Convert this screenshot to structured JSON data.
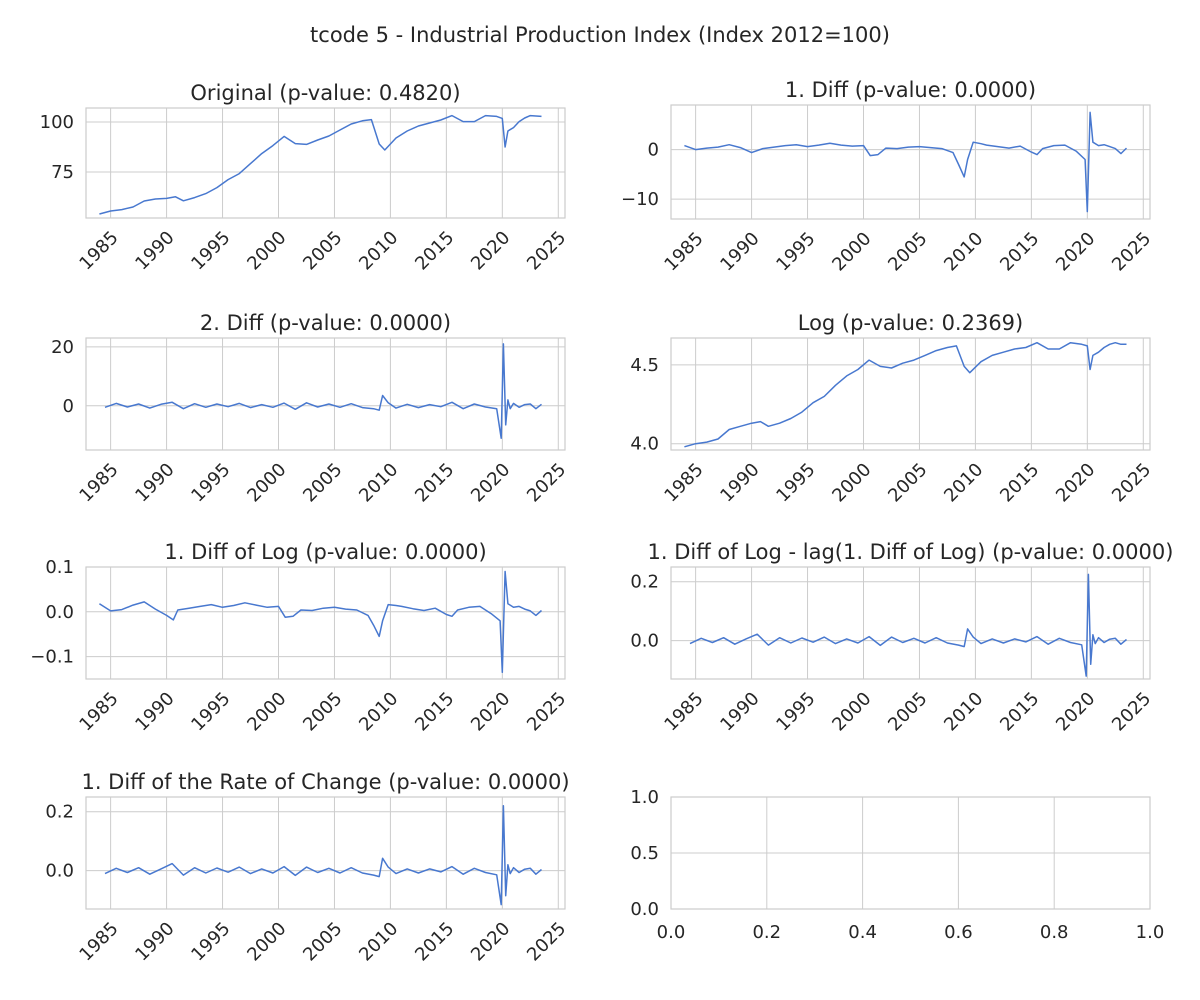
{
  "figure": {
    "title": "tcode 5 - Industrial Production Index (Index 2012=100)",
    "line_color": "#4878cf",
    "grid_color": "#cccccc"
  },
  "chart_data": [
    {
      "type": "line",
      "title": "Original (p-value: 0.4820)",
      "xlabel": "",
      "ylabel": "",
      "xlim": [
        1982.8,
        2025.6
      ],
      "ylim": [
        52,
        107
      ],
      "xticks": [
        1985,
        1990,
        1995,
        2000,
        2005,
        2010,
        2015,
        2020,
        2025
      ],
      "xtick_labels": [
        "1985",
        "1990",
        "1995",
        "2000",
        "2005",
        "2010",
        "2015",
        "2020",
        "2025"
      ],
      "yticks": [
        75,
        100
      ],
      "ytick_labels": [
        "75",
        "100"
      ],
      "grid": true,
      "series": [
        {
          "x": [
            1984.0,
            1985.0,
            1986.0,
            1987.0,
            1988.0,
            1989.0,
            1990.0,
            1990.8,
            1991.5,
            1992.5,
            1993.5,
            1994.5,
            1995.5,
            1996.5,
            1997.5,
            1998.5,
            1999.5,
            2000.5,
            2001.5,
            2002.5,
            2003.5,
            2004.5,
            2005.5,
            2006.5,
            2007.5,
            2008.3,
            2009.0,
            2009.5,
            2010.5,
            2011.5,
            2012.5,
            2013.5,
            2014.5,
            2015.5,
            2016.5,
            2017.5,
            2018.5,
            2019.5,
            2020.0,
            2020.25,
            2020.5,
            2021.0,
            2021.5,
            2022.0,
            2022.5,
            2023.0,
            2023.5
          ],
          "values": [
            54,
            55.5,
            56.2,
            57.5,
            60.5,
            61.5,
            61.8,
            62.6,
            60.6,
            62.2,
            64.2,
            67.2,
            71.2,
            74.2,
            79.2,
            84.2,
            88.2,
            92.8,
            89.2,
            88.8,
            91.0,
            93.0,
            96.0,
            99.0,
            100.6,
            101.2,
            89.0,
            86.0,
            92.0,
            95.5,
            98.0,
            99.5,
            101.0,
            103.2,
            100.2,
            100.2,
            103.2,
            102.8,
            101.8,
            87.5,
            95.5,
            97.2,
            100.2,
            102.0,
            103.2,
            103.0,
            102.8
          ]
        }
      ]
    },
    {
      "type": "line",
      "title": "1. Diff (p-value: 0.0000)",
      "xlabel": "",
      "ylabel": "",
      "xlim": [
        1982.8,
        2025.6
      ],
      "ylim": [
        -14,
        9
      ],
      "xticks": [
        1985,
        1990,
        1995,
        2000,
        2005,
        2010,
        2015,
        2020,
        2025
      ],
      "xtick_labels": [
        "1985",
        "1990",
        "1995",
        "2000",
        "2005",
        "2010",
        "2015",
        "2020",
        "2025"
      ],
      "yticks": [
        -10,
        0
      ],
      "ytick_labels": [
        "−10",
        "0"
      ],
      "grid": true,
      "series": [
        {
          "x": [
            1984.0,
            1985.0,
            1986.0,
            1987.0,
            1988.0,
            1989.0,
            1990.0,
            1991.0,
            1992.0,
            1993.0,
            1994.0,
            1995.0,
            1996.0,
            1997.0,
            1998.0,
            1999.0,
            2000.0,
            2000.6,
            2001.3,
            2002.0,
            2003.0,
            2004.0,
            2005.0,
            2006.0,
            2007.0,
            2008.0,
            2008.5,
            2009.0,
            2009.3,
            2009.8,
            2010.5,
            2011.0,
            2012.0,
            2013.0,
            2014.0,
            2015.0,
            2015.5,
            2016.0,
            2017.0,
            2018.0,
            2019.0,
            2019.8,
            2020.0,
            2020.25,
            2020.5,
            2021.0,
            2021.5,
            2022.0,
            2022.5,
            2023.0,
            2023.5
          ],
          "values": [
            0.8,
            0,
            0.3,
            0.5,
            1.0,
            0.4,
            -0.6,
            0.2,
            0.5,
            0.8,
            1.0,
            0.6,
            0.9,
            1.3,
            0.9,
            0.7,
            0.8,
            -1.2,
            -1.0,
            0.3,
            0.2,
            0.5,
            0.6,
            0.4,
            0.2,
            -0.6,
            -3.0,
            -5.5,
            -2.0,
            1.5,
            1.2,
            0.9,
            0.6,
            0.3,
            0.7,
            -0.5,
            -1.0,
            0.2,
            0.8,
            0.9,
            -0.3,
            -2.0,
            -12.5,
            7.5,
            1.5,
            0.8,
            1.0,
            0.6,
            0.2,
            -0.8,
            0.3
          ]
        }
      ]
    },
    {
      "type": "line",
      "title": "2. Diff (p-value: 0.0000)",
      "xlabel": "",
      "ylabel": "",
      "xlim": [
        1982.8,
        2025.6
      ],
      "ylim": [
        -15,
        23
      ],
      "xticks": [
        1985,
        1990,
        1995,
        2000,
        2005,
        2010,
        2015,
        2020,
        2025
      ],
      "xtick_labels": [
        "1985",
        "1990",
        "1995",
        "2000",
        "2005",
        "2010",
        "2015",
        "2020",
        "2025"
      ],
      "yticks": [
        0,
        20
      ],
      "ytick_labels": [
        "0",
        "20"
      ],
      "grid": true,
      "series": [
        {
          "x": [
            1984.5,
            1985.5,
            1986.5,
            1987.5,
            1988.5,
            1989.5,
            1990.5,
            1991.5,
            1992.5,
            1993.5,
            1994.5,
            1995.5,
            1996.5,
            1997.5,
            1998.5,
            1999.5,
            2000.5,
            2001.5,
            2002.5,
            2003.5,
            2004.5,
            2005.5,
            2006.5,
            2007.5,
            2008.5,
            2009.0,
            2009.3,
            2009.8,
            2010.5,
            2011.5,
            2012.5,
            2013.5,
            2014.5,
            2015.5,
            2016.5,
            2017.5,
            2018.5,
            2019.5,
            2019.9,
            2020.1,
            2020.3,
            2020.5,
            2020.7,
            2021.0,
            2021.5,
            2022.0,
            2022.5,
            2023.0,
            2023.5
          ],
          "values": [
            -0.5,
            0.8,
            -0.4,
            0.6,
            -0.8,
            0.5,
            1.2,
            -1.0,
            0.7,
            -0.5,
            0.6,
            -0.3,
            0.8,
            -0.6,
            0.4,
            -0.5,
            0.9,
            -1.2,
            1.0,
            -0.4,
            0.6,
            -0.5,
            0.7,
            -0.6,
            -1.0,
            -1.5,
            3.5,
            1.0,
            -0.8,
            0.5,
            -0.6,
            0.4,
            -0.3,
            1.2,
            -1.0,
            0.6,
            -0.4,
            -1.0,
            -11.0,
            21.0,
            -6.5,
            2.0,
            -1.0,
            0.8,
            -0.5,
            0.4,
            0.6,
            -1.0,
            0.5
          ]
        }
      ]
    },
    {
      "type": "line",
      "title": "Log (p-value: 0.2369)",
      "xlabel": "",
      "ylabel": "",
      "xlim": [
        1982.8,
        2025.6
      ],
      "ylim": [
        3.96,
        4.67
      ],
      "xticks": [
        1985,
        1990,
        1995,
        2000,
        2005,
        2010,
        2015,
        2020,
        2025
      ],
      "xtick_labels": [
        "1985",
        "1990",
        "1995",
        "2000",
        "2005",
        "2010",
        "2015",
        "2020",
        "2025"
      ],
      "yticks": [
        4.0,
        4.5
      ],
      "ytick_labels": [
        "4.0",
        "4.5"
      ],
      "grid": true,
      "series": [
        {
          "x": [
            1984.0,
            1985.0,
            1986.0,
            1987.0,
            1988.0,
            1989.0,
            1990.0,
            1990.8,
            1991.5,
            1992.5,
            1993.5,
            1994.5,
            1995.5,
            1996.5,
            1997.5,
            1998.5,
            1999.5,
            2000.5,
            2001.5,
            2002.5,
            2003.5,
            2004.5,
            2005.5,
            2006.5,
            2007.5,
            2008.3,
            2009.0,
            2009.5,
            2010.5,
            2011.5,
            2012.5,
            2013.5,
            2014.5,
            2015.5,
            2016.5,
            2017.5,
            2018.5,
            2019.5,
            2020.0,
            2020.25,
            2020.5,
            2021.0,
            2021.5,
            2022.0,
            2022.5,
            2023.0,
            2023.5
          ],
          "values": [
            3.98,
            4.0,
            4.01,
            4.03,
            4.09,
            4.11,
            4.13,
            4.14,
            4.11,
            4.13,
            4.16,
            4.2,
            4.26,
            4.3,
            4.37,
            4.43,
            4.47,
            4.53,
            4.49,
            4.48,
            4.51,
            4.53,
            4.56,
            4.59,
            4.61,
            4.62,
            4.49,
            4.45,
            4.52,
            4.56,
            4.58,
            4.6,
            4.61,
            4.64,
            4.6,
            4.6,
            4.64,
            4.63,
            4.62,
            4.47,
            4.56,
            4.58,
            4.61,
            4.63,
            4.64,
            4.63,
            4.63
          ]
        }
      ]
    },
    {
      "type": "line",
      "title": "1. Diff of Log (p-value: 0.0000)",
      "xlabel": "",
      "ylabel": "",
      "xlim": [
        1982.8,
        2025.6
      ],
      "ylim": [
        -0.15,
        0.1
      ],
      "xticks": [
        1985,
        1990,
        1995,
        2000,
        2005,
        2010,
        2015,
        2020,
        2025
      ],
      "xtick_labels": [
        "1985",
        "1990",
        "1995",
        "2000",
        "2005",
        "2010",
        "2015",
        "2020",
        "2025"
      ],
      "yticks": [
        -0.1,
        0.0,
        0.1
      ],
      "ytick_labels": [
        "−0.1",
        "0.0",
        "0.1"
      ],
      "grid": true,
      "series": [
        {
          "x": [
            1984.0,
            1985.0,
            1986.0,
            1987.0,
            1988.0,
            1989.0,
            1990.0,
            1990.6,
            1991.0,
            1992.0,
            1993.0,
            1994.0,
            1995.0,
            1996.0,
            1997.0,
            1998.0,
            1999.0,
            2000.0,
            2000.6,
            2001.3,
            2002.0,
            2003.0,
            2004.0,
            2005.0,
            2006.0,
            2007.0,
            2008.0,
            2008.5,
            2009.0,
            2009.3,
            2009.8,
            2010.5,
            2011.0,
            2012.0,
            2013.0,
            2014.0,
            2015.0,
            2015.5,
            2016.0,
            2017.0,
            2018.0,
            2019.0,
            2019.8,
            2020.0,
            2020.25,
            2020.5,
            2021.0,
            2021.5,
            2022.0,
            2022.5,
            2023.0,
            2023.5
          ],
          "values": [
            0.018,
            0.002,
            0.005,
            0.015,
            0.022,
            0.006,
            -0.008,
            -0.018,
            0.004,
            0.008,
            0.012,
            0.016,
            0.01,
            0.014,
            0.02,
            0.015,
            0.01,
            0.012,
            -0.012,
            -0.01,
            0.004,
            0.003,
            0.008,
            0.01,
            0.006,
            0.004,
            -0.008,
            -0.03,
            -0.055,
            -0.02,
            0.016,
            0.014,
            0.012,
            0.007,
            0.003,
            0.008,
            -0.006,
            -0.01,
            0.004,
            0.01,
            0.012,
            -0.004,
            -0.02,
            -0.135,
            0.09,
            0.018,
            0.01,
            0.012,
            0.006,
            0.002,
            -0.008,
            0.003
          ]
        }
      ]
    },
    {
      "type": "line",
      "title": "1. Diff of Log - lag(1. Diff of Log) (p-value: 0.0000)",
      "xlabel": "",
      "ylabel": "",
      "xlim": [
        1982.8,
        2025.6
      ],
      "ylim": [
        -0.13,
        0.25
      ],
      "xticks": [
        1985,
        1990,
        1995,
        2000,
        2005,
        2010,
        2015,
        2020,
        2025
      ],
      "xtick_labels": [
        "1985",
        "1990",
        "1995",
        "2000",
        "2005",
        "2010",
        "2015",
        "2020",
        "2025"
      ],
      "yticks": [
        0.0,
        0.2
      ],
      "ytick_labels": [
        "0.0",
        "0.2"
      ],
      "grid": true,
      "series": [
        {
          "x": [
            1984.5,
            1985.5,
            1986.5,
            1987.5,
            1988.5,
            1989.5,
            1990.5,
            1991.5,
            1992.5,
            1993.5,
            1994.5,
            1995.5,
            1996.5,
            1997.5,
            1998.5,
            1999.5,
            2000.5,
            2001.5,
            2002.5,
            2003.5,
            2004.5,
            2005.5,
            2006.5,
            2007.5,
            2008.5,
            2009.0,
            2009.3,
            2009.8,
            2010.5,
            2011.5,
            2012.5,
            2013.5,
            2014.5,
            2015.5,
            2016.5,
            2017.5,
            2018.5,
            2019.5,
            2019.9,
            2020.1,
            2020.3,
            2020.5,
            2020.7,
            2021.0,
            2021.5,
            2022.0,
            2022.5,
            2023.0,
            2023.5
          ],
          "values": [
            -0.01,
            0.008,
            -0.006,
            0.01,
            -0.012,
            0.006,
            0.022,
            -0.015,
            0.01,
            -0.008,
            0.009,
            -0.005,
            0.012,
            -0.01,
            0.006,
            -0.008,
            0.014,
            -0.016,
            0.012,
            -0.006,
            0.008,
            -0.008,
            0.01,
            -0.008,
            -0.015,
            -0.02,
            0.04,
            0.012,
            -0.01,
            0.006,
            -0.008,
            0.006,
            -0.004,
            0.014,
            -0.012,
            0.008,
            -0.006,
            -0.014,
            -0.12,
            0.225,
            -0.08,
            0.02,
            -0.01,
            0.01,
            -0.006,
            0.005,
            0.008,
            -0.012,
            0.004
          ]
        }
      ]
    },
    {
      "type": "line",
      "title": "1. Diff of the Rate of Change (p-value: 0.0000)",
      "xlabel": "",
      "ylabel": "",
      "xlim": [
        1982.8,
        2025.6
      ],
      "ylim": [
        -0.13,
        0.25
      ],
      "xticks": [
        1985,
        1990,
        1995,
        2000,
        2005,
        2010,
        2015,
        2020,
        2025
      ],
      "xtick_labels": [
        "1985",
        "1990",
        "1995",
        "2000",
        "2005",
        "2010",
        "2015",
        "2020",
        "2025"
      ],
      "yticks": [
        0.0,
        0.2
      ],
      "ytick_labels": [
        "0.0",
        "0.2"
      ],
      "grid": true,
      "series": [
        {
          "x": [
            1984.5,
            1985.5,
            1986.5,
            1987.5,
            1988.5,
            1989.5,
            1990.5,
            1991.5,
            1992.5,
            1993.5,
            1994.5,
            1995.5,
            1996.5,
            1997.5,
            1998.5,
            1999.5,
            2000.5,
            2001.5,
            2002.5,
            2003.5,
            2004.5,
            2005.5,
            2006.5,
            2007.5,
            2008.5,
            2009.0,
            2009.3,
            2009.8,
            2010.5,
            2011.5,
            2012.5,
            2013.5,
            2014.5,
            2015.5,
            2016.5,
            2017.5,
            2018.5,
            2019.5,
            2019.9,
            2020.1,
            2020.3,
            2020.5,
            2020.7,
            2021.0,
            2021.5,
            2022.0,
            2022.5,
            2023.0,
            2023.5
          ],
          "values": [
            -0.01,
            0.008,
            -0.006,
            0.01,
            -0.012,
            0.006,
            0.024,
            -0.015,
            0.01,
            -0.008,
            0.009,
            -0.005,
            0.012,
            -0.01,
            0.006,
            -0.008,
            0.014,
            -0.016,
            0.012,
            -0.006,
            0.008,
            -0.008,
            0.01,
            -0.008,
            -0.015,
            -0.02,
            0.042,
            0.012,
            -0.01,
            0.006,
            -0.008,
            0.006,
            -0.004,
            0.014,
            -0.012,
            0.008,
            -0.006,
            -0.014,
            -0.115,
            0.22,
            -0.085,
            0.02,
            -0.01,
            0.01,
            -0.006,
            0.005,
            0.008,
            -0.012,
            0.004
          ]
        }
      ]
    },
    {
      "type": "line",
      "title": "",
      "xlabel": "",
      "ylabel": "",
      "xlim": [
        0.0,
        1.0
      ],
      "ylim": [
        0.0,
        1.0
      ],
      "xticks": [
        0.0,
        0.2,
        0.4,
        0.6,
        0.8,
        1.0
      ],
      "xtick_labels": [
        "0.0",
        "0.2",
        "0.4",
        "0.6",
        "0.8",
        "1.0"
      ],
      "yticks": [
        0.0,
        0.5,
        1.0
      ],
      "ytick_labels": [
        "0.0",
        "0.5",
        "1.0"
      ],
      "grid": true,
      "series": []
    }
  ]
}
